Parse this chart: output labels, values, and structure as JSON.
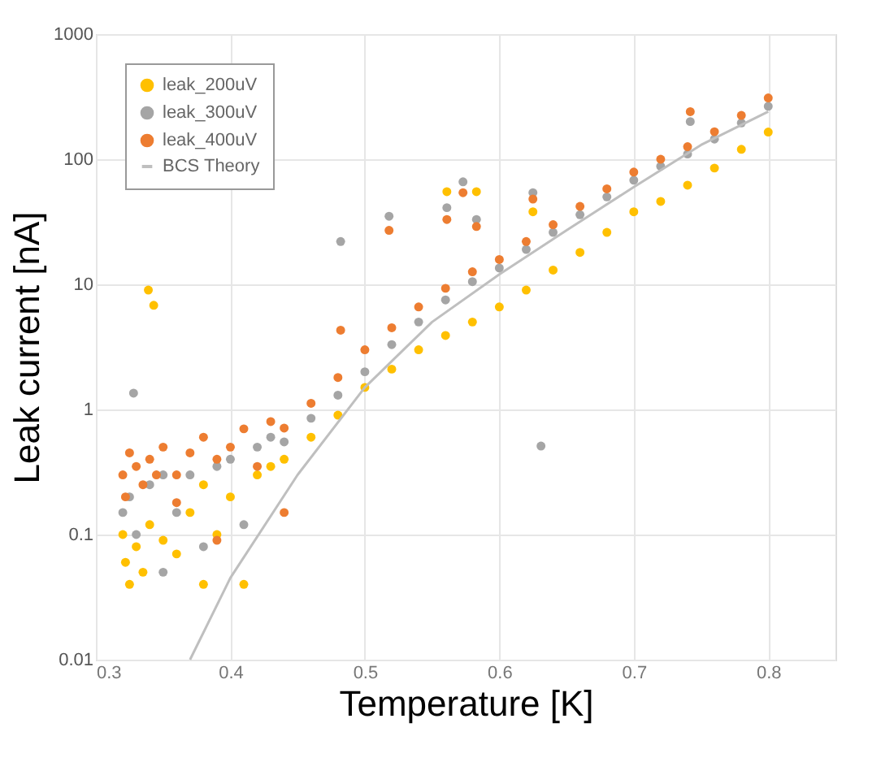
{
  "chart_data": {
    "type": "scatter",
    "xlabel": "Temperature [K]",
    "ylabel": "Leak current [nA]",
    "xlim": [
      0.3,
      0.85
    ],
    "xticks": [
      0.3,
      0.4,
      0.5,
      0.6,
      0.7,
      0.8
    ],
    "ylim": [
      0.01,
      1000
    ],
    "yticks": [
      0.01,
      0.1,
      1,
      10,
      100,
      1000
    ],
    "log": "y",
    "grid": true,
    "legend": "top left",
    "marker": "circle",
    "series": [
      {
        "name": "leak_200uV",
        "color": "#ffc000",
        "x": [
          0.32,
          0.322,
          0.325,
          0.33,
          0.335,
          0.34,
          0.35,
          0.36,
          0.37,
          0.38,
          0.39,
          0.4,
          0.41,
          0.42,
          0.43,
          0.38,
          0.339,
          0.343,
          0.561,
          0.583,
          0.625,
          0.44,
          0.46,
          0.48,
          0.5,
          0.52,
          0.54,
          0.56,
          0.58,
          0.6,
          0.62,
          0.64,
          0.66,
          0.68,
          0.7,
          0.72,
          0.74,
          0.76,
          0.78,
          0.8
        ],
        "values": [
          0.1,
          0.06,
          0.04,
          0.08,
          0.05,
          0.12,
          0.09,
          0.07,
          0.15,
          0.04,
          0.1,
          0.2,
          0.04,
          0.3,
          0.35,
          0.25,
          9,
          6.8,
          55,
          55,
          38,
          0.4,
          0.6,
          0.9,
          1.5,
          2.1,
          3,
          3.9,
          5,
          6.6,
          9,
          13,
          18,
          26,
          38,
          46,
          62,
          85,
          120,
          165
        ]
      },
      {
        "name": "leak_300uV",
        "color": "#a5a5a5",
        "x": [
          0.32,
          0.325,
          0.33,
          0.34,
          0.35,
          0.36,
          0.37,
          0.38,
          0.39,
          0.4,
          0.41,
          0.42,
          0.43,
          0.35,
          0.328,
          0.482,
          0.518,
          0.573,
          0.561,
          0.583,
          0.625,
          0.742,
          0.631,
          0.44,
          0.46,
          0.48,
          0.5,
          0.52,
          0.54,
          0.56,
          0.58,
          0.6,
          0.62,
          0.64,
          0.66,
          0.68,
          0.7,
          0.72,
          0.74,
          0.76,
          0.78,
          0.8
        ],
        "values": [
          0.15,
          0.2,
          0.1,
          0.25,
          0.05,
          0.15,
          0.3,
          0.08,
          0.35,
          0.4,
          0.12,
          0.5,
          0.6,
          0.3,
          1.35,
          22,
          35,
          66,
          41,
          33,
          54,
          200,
          0.51,
          0.55,
          0.85,
          1.3,
          2,
          3.3,
          5,
          7.5,
          10.5,
          13.5,
          19,
          26,
          36,
          50,
          68,
          88,
          110,
          145,
          195,
          265
        ]
      },
      {
        "name": "leak_400uV",
        "color": "#ed7d31",
        "x": [
          0.32,
          0.322,
          0.325,
          0.33,
          0.335,
          0.34,
          0.345,
          0.35,
          0.36,
          0.37,
          0.38,
          0.39,
          0.4,
          0.41,
          0.42,
          0.43,
          0.36,
          0.44,
          0.39,
          0.482,
          0.518,
          0.573,
          0.561,
          0.583,
          0.625,
          0.742,
          0.44,
          0.46,
          0.48,
          0.5,
          0.52,
          0.54,
          0.56,
          0.58,
          0.6,
          0.62,
          0.64,
          0.66,
          0.68,
          0.7,
          0.72,
          0.74,
          0.76,
          0.78,
          0.8
        ],
        "values": [
          0.3,
          0.2,
          0.45,
          0.35,
          0.25,
          0.4,
          0.3,
          0.5,
          0.3,
          0.45,
          0.6,
          0.4,
          0.5,
          0.7,
          0.35,
          0.8,
          0.18,
          0.15,
          0.09,
          4.3,
          27,
          54,
          33,
          29,
          48,
          240,
          0.71,
          1.12,
          1.8,
          3,
          4.5,
          6.6,
          9.3,
          12.6,
          15.8,
          22,
          30,
          42,
          58,
          79,
          100,
          126,
          166,
          224,
          309
        ]
      },
      {
        "name": "BCS Theory",
        "type": "line",
        "marker": "none",
        "color": "#bfbfbf",
        "x": [
          0.37,
          0.4,
          0.45,
          0.5,
          0.55,
          0.6,
          0.65,
          0.7,
          0.75,
          0.8
        ],
        "values": [
          0.01,
          0.045,
          0.3,
          1.5,
          5,
          12,
          27,
          60,
          130,
          240
        ]
      }
    ]
  }
}
